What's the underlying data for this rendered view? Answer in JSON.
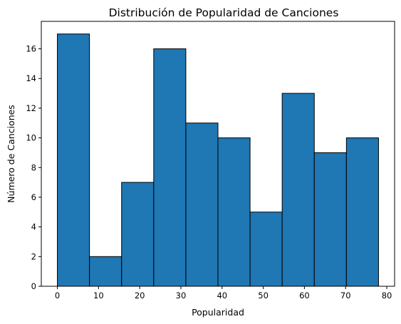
{
  "chart_data": {
    "type": "bar",
    "title": "Distribución de Popularidad de Canciones",
    "xlabel": "Popularidad",
    "ylabel": "Número de Canciones",
    "bin_edges": [
      0,
      7.8,
      15.6,
      23.4,
      31.2,
      39,
      46.8,
      54.6,
      62.4,
      70.2,
      78
    ],
    "values": [
      17,
      2,
      7,
      16,
      11,
      10,
      5,
      13,
      9,
      10
    ],
    "xlim": [
      -3.9,
      81.9
    ],
    "ylim": [
      0,
      17.85
    ],
    "xticks": [
      0,
      10,
      20,
      30,
      40,
      50,
      60,
      70,
      80
    ],
    "yticks": [
      0,
      2,
      4,
      6,
      8,
      10,
      12,
      14,
      16
    ],
    "bar_color": "#1f77b4",
    "edge_color": "#000000",
    "grid": false,
    "legend": "none"
  }
}
